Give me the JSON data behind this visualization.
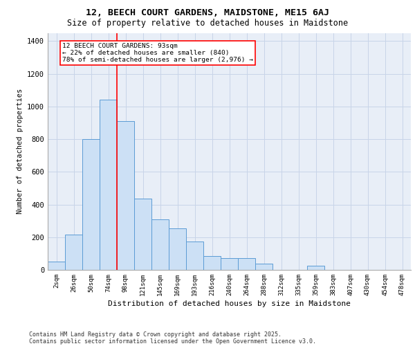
{
  "title_line1": "12, BEECH COURT GARDENS, MAIDSTONE, ME15 6AJ",
  "title_line2": "Size of property relative to detached houses in Maidstone",
  "xlabel": "Distribution of detached houses by size in Maidstone",
  "ylabel": "Number of detached properties",
  "categories": [
    "2sqm",
    "26sqm",
    "50sqm",
    "74sqm",
    "98sqm",
    "121sqm",
    "145sqm",
    "169sqm",
    "193sqm",
    "216sqm",
    "240sqm",
    "264sqm",
    "288sqm",
    "312sqm",
    "335sqm",
    "359sqm",
    "383sqm",
    "407sqm",
    "430sqm",
    "454sqm",
    "478sqm"
  ],
  "values": [
    50,
    215,
    800,
    1040,
    910,
    435,
    310,
    255,
    175,
    85,
    70,
    70,
    40,
    0,
    0,
    25,
    0,
    0,
    0,
    0,
    0
  ],
  "bar_color": "#cce0f5",
  "bar_edge_color": "#5b9bd5",
  "vline_color": "red",
  "vline_x": 3.5,
  "annotation_text": "12 BEECH COURT GARDENS: 93sqm\n← 22% of detached houses are smaller (840)\n78% of semi-detached houses are larger (2,976) →",
  "annotation_box_color": "white",
  "annotation_edge_color": "red",
  "ylim": [
    0,
    1450
  ],
  "yticks": [
    0,
    200,
    400,
    600,
    800,
    1000,
    1200,
    1400
  ],
  "grid_color": "#c8d4e8",
  "bg_color": "#e8eef7",
  "footer1": "Contains HM Land Registry data © Crown copyright and database right 2025.",
  "footer2": "Contains public sector information licensed under the Open Government Licence v3.0."
}
